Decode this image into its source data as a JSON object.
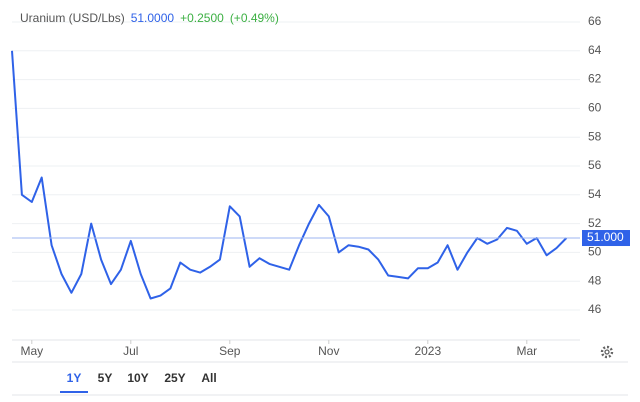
{
  "chart_data": {
    "type": "line",
    "title": "Uranium (USD/Lbs)",
    "price": "51.0000",
    "change": "+0.2500",
    "change_pct": "(+0.49%)",
    "last_price_label": "51.000",
    "categories": [
      null,
      null,
      "May",
      null,
      null,
      null,
      null,
      null,
      null,
      null,
      null,
      null,
      "Jul",
      null,
      null,
      null,
      null,
      null,
      null,
      null,
      null,
      null,
      "Sep",
      null,
      null,
      null,
      null,
      null,
      null,
      null,
      null,
      null,
      "Nov",
      null,
      null,
      null,
      null,
      null,
      null,
      null,
      null,
      null,
      "2023",
      null,
      null,
      null,
      null,
      null,
      null,
      null,
      null,
      null,
      "Mar",
      null,
      null,
      null,
      null
    ],
    "series": [
      {
        "name": "Uranium",
        "color": "#2f62e8",
        "values": [
          64,
          54,
          53.5,
          55.2,
          50.5,
          48.5,
          47.2,
          48.5,
          52.0,
          49.5,
          47.8,
          48.8,
          50.8,
          48.5,
          46.8,
          47.0,
          47.5,
          49.3,
          48.8,
          48.6,
          49.0,
          49.5,
          53.2,
          52.5,
          49.0,
          49.6,
          49.2,
          49.0,
          48.8,
          50.5,
          52.0,
          53.3,
          52.5,
          50.0,
          50.5,
          50.4,
          50.2,
          49.5,
          48.4,
          48.3,
          48.2,
          48.9,
          48.9,
          49.3,
          50.5,
          48.8,
          50.0,
          51.0,
          50.6,
          50.9,
          51.7,
          51.5,
          50.6,
          51.0,
          49.8,
          50.3,
          51.0
        ]
      }
    ],
    "ylim": [
      43.92,
      66.83
    ],
    "yticks": [
      46,
      48,
      50,
      52,
      54,
      56,
      58,
      60,
      62,
      64,
      66
    ],
    "grid": true,
    "ranges": [
      "1Y",
      "5Y",
      "10Y",
      "25Y",
      "All"
    ],
    "selected_range": "1Y"
  }
}
